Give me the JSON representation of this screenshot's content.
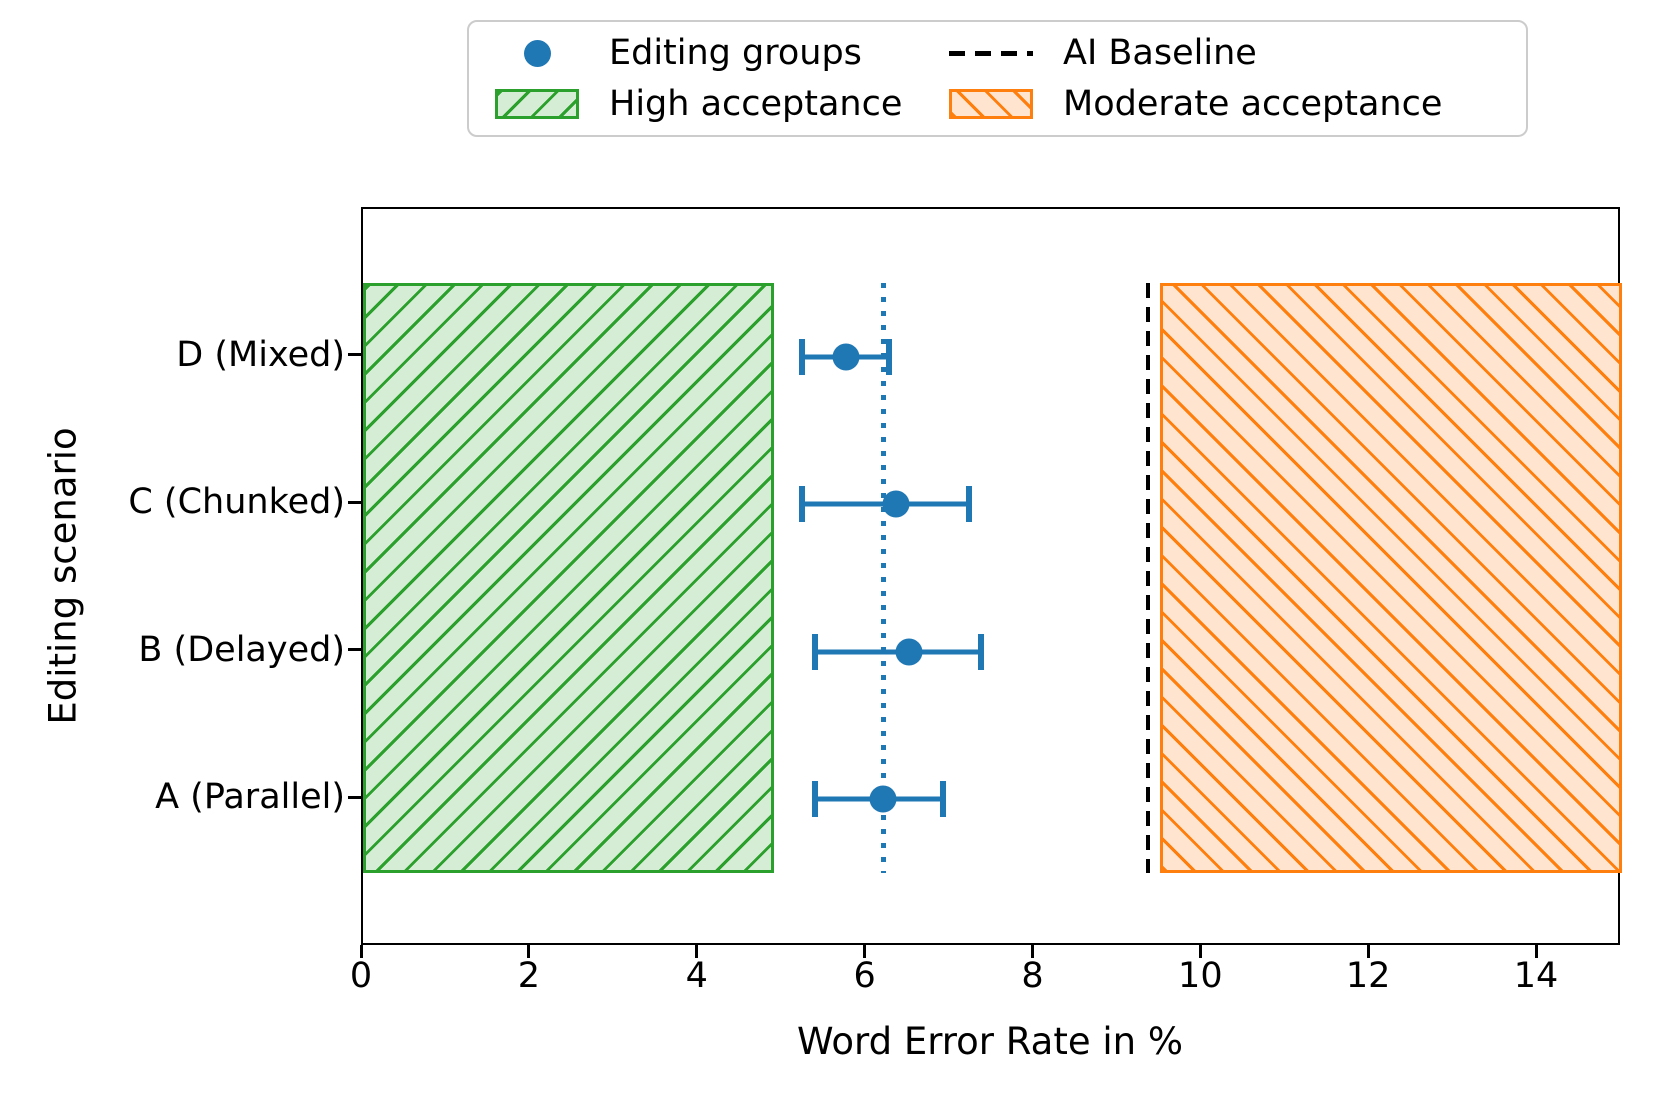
{
  "legend": {
    "items": [
      {
        "label": "Editing groups",
        "marker": "dot",
        "color": "#1f77b4"
      },
      {
        "label": "AI Baseline",
        "marker": "dashed-line",
        "color": "#000000"
      },
      {
        "label": "High acceptance",
        "marker": "hatched-patch",
        "color": "#2ca02c"
      },
      {
        "label": "Moderate acceptance",
        "marker": "hatched-patch",
        "color": "#ff7f0e"
      }
    ]
  },
  "axes": {
    "xlabel": "Word Error Rate in %",
    "ylabel": "Editing scenario",
    "x_ticks": [
      0,
      2,
      4,
      6,
      8,
      10,
      12,
      14
    ],
    "y_ticks": [
      "D (Mixed)",
      "C (Chunked)",
      "B (Delayed)",
      "A (Parallel)"
    ]
  },
  "chart_data": {
    "type": "scatter",
    "title": "",
    "xlabel": "Word Error Rate in %",
    "ylabel": "Editing scenario",
    "xlim": [
      0,
      15
    ],
    "x_ticks": [
      0,
      2,
      4,
      6,
      8,
      10,
      12,
      14
    ],
    "categories_top_to_bottom": [
      "D (Mixed)",
      "C (Chunked)",
      "B (Delayed)",
      "A (Parallel)"
    ],
    "series": [
      {
        "name": "Editing groups",
        "color": "#1f77b4",
        "points": [
          {
            "category": "D (Mixed)",
            "value": 5.75,
            "ci_low": 5.2,
            "ci_high": 6.3
          },
          {
            "category": "C (Chunked)",
            "value": 6.35,
            "ci_low": 5.2,
            "ci_high": 7.25
          },
          {
            "category": "B (Delayed)",
            "value": 6.5,
            "ci_low": 5.35,
            "ci_high": 7.4
          },
          {
            "category": "A (Parallel)",
            "value": 6.2,
            "ci_low": 5.35,
            "ci_high": 6.95
          }
        ]
      }
    ],
    "reference_lines": [
      {
        "label": "AI Baseline",
        "value": 9.35,
        "style": "dashed",
        "color": "#000000"
      },
      {
        "label": "",
        "value": 6.2,
        "style": "dotted",
        "color": "#1f77b4"
      }
    ],
    "regions": [
      {
        "label": "High acceptance",
        "from": 0,
        "to": 4.9,
        "hatch": "/",
        "color": "#2ca02c",
        "fill": "#d5ecd5"
      },
      {
        "label": "Moderate acceptance",
        "from": 9.5,
        "to": 15,
        "hatch": "\\",
        "color": "#ff7f0e",
        "fill": "#ffe5cf"
      }
    ],
    "legend_position": "upper center, outside plot",
    "grid": false
  }
}
